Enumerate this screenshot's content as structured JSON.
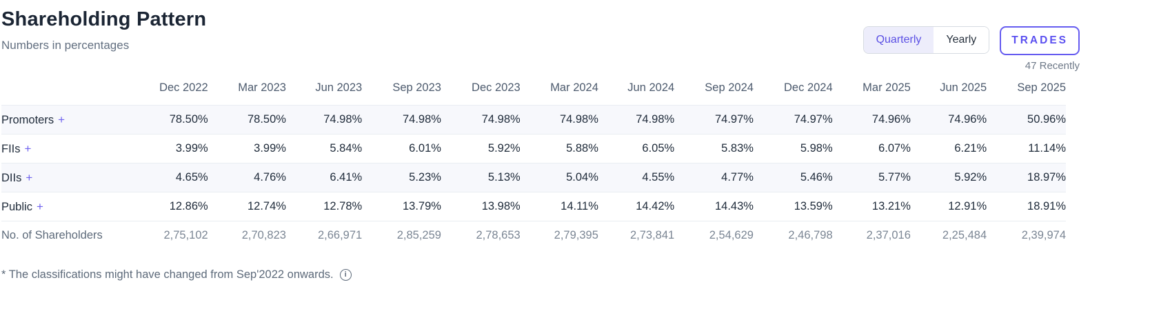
{
  "header": {
    "title": "Shareholding Pattern",
    "subtitle": "Numbers in percentages"
  },
  "controls": {
    "toggle": {
      "options": [
        {
          "label": "Quarterly",
          "active": true
        },
        {
          "label": "Yearly",
          "active": false
        }
      ]
    },
    "trades_label": "TRADES",
    "trades_caption": "47 Recently"
  },
  "table": {
    "columns": [
      "Dec 2022",
      "Mar 2023",
      "Jun 2023",
      "Sep 2023",
      "Dec 2023",
      "Mar 2024",
      "Jun 2024",
      "Sep 2024",
      "Dec 2024",
      "Mar 2025",
      "Jun 2025",
      "Sep 2025"
    ],
    "rows": [
      {
        "label": "Promoters",
        "expandable": true,
        "values": [
          "78.50%",
          "78.50%",
          "74.98%",
          "74.98%",
          "74.98%",
          "74.98%",
          "74.98%",
          "74.97%",
          "74.97%",
          "74.96%",
          "74.96%",
          "50.96%"
        ]
      },
      {
        "label": "FIIs",
        "expandable": true,
        "values": [
          "3.99%",
          "3.99%",
          "5.84%",
          "6.01%",
          "5.92%",
          "5.88%",
          "6.05%",
          "5.83%",
          "5.98%",
          "6.07%",
          "6.21%",
          "11.14%"
        ]
      },
      {
        "label": "DIIs",
        "expandable": true,
        "values": [
          "4.65%",
          "4.76%",
          "6.41%",
          "5.23%",
          "5.13%",
          "5.04%",
          "4.55%",
          "4.77%",
          "5.46%",
          "5.77%",
          "5.92%",
          "18.97%"
        ]
      },
      {
        "label": "Public",
        "expandable": true,
        "values": [
          "12.86%",
          "12.74%",
          "12.78%",
          "13.79%",
          "13.98%",
          "14.11%",
          "14.42%",
          "14.43%",
          "13.59%",
          "13.21%",
          "12.91%",
          "18.91%"
        ]
      },
      {
        "label": "No. of Shareholders",
        "expandable": false,
        "values": [
          "2,75,102",
          "2,70,823",
          "2,66,971",
          "2,85,259",
          "2,78,653",
          "2,79,395",
          "2,73,841",
          "2,54,629",
          "2,46,798",
          "2,37,016",
          "2,25,484",
          "2,39,974"
        ]
      }
    ],
    "expand_glyph": "+"
  },
  "footer": {
    "note": "* The classifications might have changed from Sep'2022 onwards.",
    "info_icon": "info-icon",
    "info_glyph": "i"
  },
  "colors": {
    "accent": "#5a4ff0",
    "accent_background": "#ededfb",
    "stripe_background": "#f7f8fc",
    "muted_text": "#7b8694",
    "title_text": "#1b2534"
  }
}
